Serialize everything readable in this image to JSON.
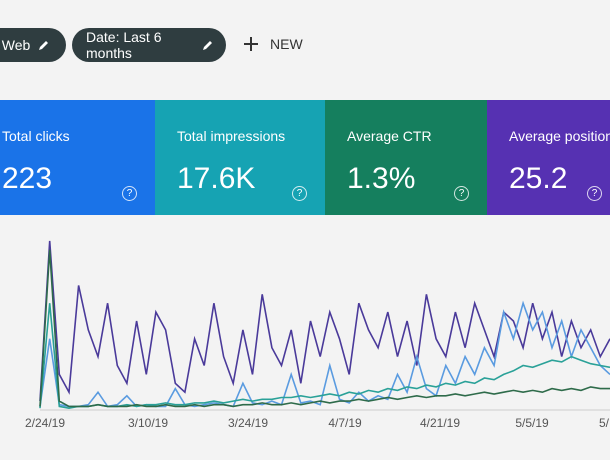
{
  "filters": {
    "chips": [
      ": Web",
      "Date: Last 6 months"
    ],
    "new_button": "NEW"
  },
  "cards": [
    {
      "label": "Total clicks",
      "value": "223",
      "color": "#1a73e8"
    },
    {
      "label": "Total impressions",
      "value": "17.6K",
      "color": "#16a3b3"
    },
    {
      "label": "Average CTR",
      "value": "1.3%",
      "color": "#157f5e"
    },
    {
      "label": "Average position",
      "value": "25.2",
      "color": "#5631b2"
    }
  ],
  "help_icon": "?",
  "chart": {
    "x_tick_labels": [
      "2/24/19",
      "3/10/19",
      "3/24/19",
      "4/7/19",
      "4/21/19",
      "5/5/19",
      "5/"
    ],
    "series": [
      {
        "color": "#4a3a9a",
        "values": [
          5,
          95,
          20,
          10,
          70,
          45,
          30,
          60,
          25,
          15,
          50,
          20,
          55,
          45,
          15,
          10,
          40,
          25,
          60,
          30,
          15,
          45,
          20,
          65,
          35,
          25,
          45,
          15,
          50,
          30,
          55,
          40,
          20,
          60,
          45,
          35,
          55,
          30,
          50,
          25,
          65,
          40,
          30,
          55,
          35,
          60,
          45,
          30,
          55,
          50,
          35,
          60,
          40,
          55,
          30,
          50,
          35,
          45,
          30,
          40
        ]
      },
      {
        "color": "#5a9be0",
        "values": [
          2,
          40,
          3,
          2,
          2,
          3,
          10,
          2,
          3,
          8,
          2,
          3,
          2,
          2,
          12,
          3,
          2,
          3,
          4,
          3,
          2,
          15,
          4,
          3,
          5,
          3,
          20,
          4,
          5,
          3,
          25,
          6,
          4,
          10,
          5,
          8,
          6,
          20,
          10,
          30,
          12,
          8,
          25,
          15,
          30,
          20,
          35,
          25,
          55,
          40,
          60,
          45,
          55,
          35,
          50,
          30,
          45,
          35,
          25,
          20
        ]
      },
      {
        "color": "#2aa198",
        "values": [
          1,
          60,
          2,
          1,
          2,
          2,
          3,
          2,
          2,
          3,
          2,
          3,
          3,
          4,
          3,
          3,
          4,
          4,
          5,
          4,
          5,
          6,
          5,
          6,
          6,
          7,
          7,
          8,
          7,
          8,
          9,
          8,
          10,
          9,
          11,
          10,
          12,
          11,
          13,
          12,
          14,
          13,
          15,
          14,
          16,
          15,
          18,
          17,
          20,
          22,
          25,
          24,
          26,
          28,
          27,
          30,
          28,
          26,
          25,
          24
        ]
      },
      {
        "color": "#2e6b4a",
        "values": [
          2,
          90,
          5,
          2,
          2,
          2,
          3,
          2,
          2,
          2,
          3,
          2,
          2,
          3,
          2,
          2,
          3,
          2,
          3,
          3,
          2,
          3,
          3,
          4,
          3,
          3,
          4,
          3,
          4,
          5,
          4,
          5,
          5,
          6,
          5,
          6,
          7,
          6,
          7,
          8,
          7,
          8,
          8,
          9,
          8,
          9,
          10,
          9,
          10,
          11,
          10,
          11,
          10,
          12,
          11,
          12,
          11,
          13,
          12,
          12
        ]
      }
    ]
  }
}
